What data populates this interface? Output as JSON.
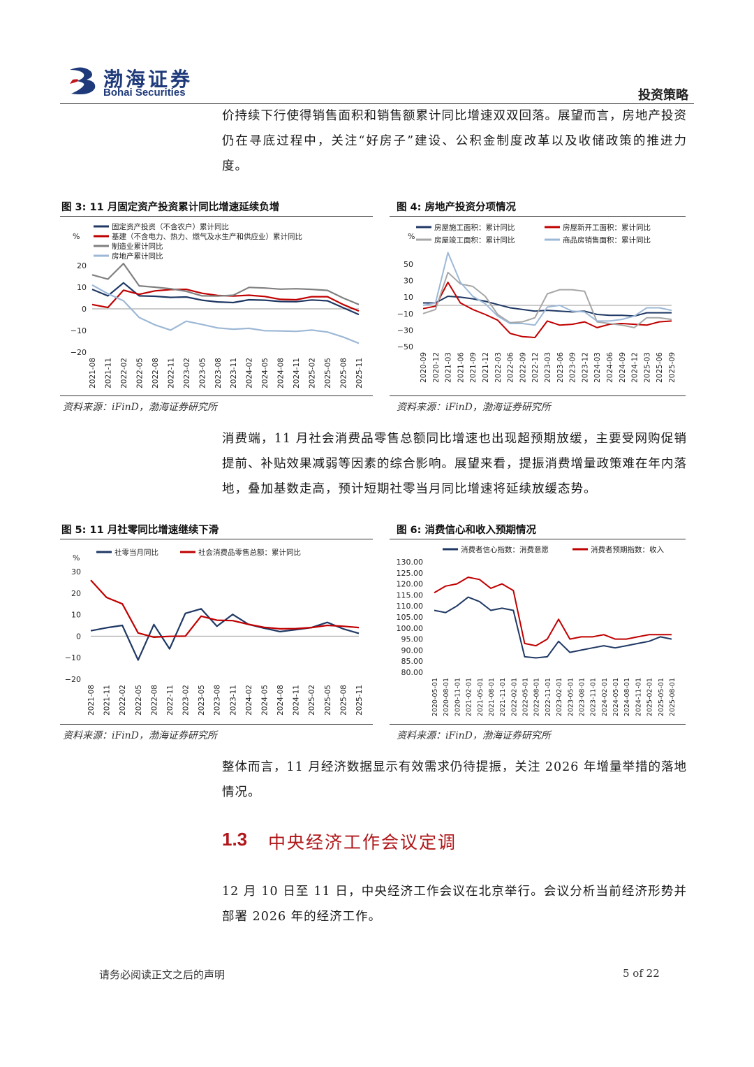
{
  "header": {
    "logo_cn": "渤海证券",
    "logo_en": "Bohai Securities",
    "section": "投资策略"
  },
  "paragraphs": {
    "p1": "价持续下行使得销售面积和销售额累计同比增速双双回落。展望而言，房地产投资仍在寻底过程中，关注“好房子”建设、公积金制度改革以及收储政策的推进力度。",
    "p2": "消费端，11 月社会消费品零售总额同比增速也出现超预期放缓，主要受网购促销提前、补贴效果减弱等因素的综合影响。展望来看，提振消费增量政策难在年内落地，叠加基数走高，预计短期社零当月同比增速将延续放缓态势。",
    "p3": "整体而言，11 月经济数据显示有效需求仍待提振，关注 2026 年增量举措的落地情况。",
    "p4": "12 月 10 日至 11 日，中央经济工作会议在北京举行。会议分析当前经济形势并部署 2026 年的经济工作。"
  },
  "section": {
    "number": "1.3",
    "title": "中央经济工作会议定调"
  },
  "figures": {
    "fig3": {
      "title": "图 3:   11 月固定资产投资累计同比增速延续负增",
      "source": "资料来源：iFinD，渤海证券研究所"
    },
    "fig4": {
      "title": "图 4:   房地产投资分项情况",
      "source": "资料来源：iFinD，渤海证券研究所"
    },
    "fig5": {
      "title": "图 5:   11 月社零同比增速继续下滑",
      "source": "资料来源：iFinD，渤海证券研究所"
    },
    "fig6": {
      "title": "图 6:   消费信心和收入预期情况",
      "source": "资料来源：iFinD，渤海证券研究所"
    }
  },
  "footer": {
    "disclaimer": "请务必阅读正文之后的声明",
    "page": "5 of 22"
  },
  "chart_data": [
    {
      "id": "fig3",
      "type": "line",
      "unit": "%",
      "ylim": [
        -20,
        20
      ],
      "yticks": [
        20,
        10,
        0,
        -10,
        -20
      ],
      "legend": "top-left",
      "x_labels": [
        "2021-08",
        "2021-11",
        "2022-02",
        "2022-05",
        "2022-08",
        "2022-11",
        "2023-02",
        "2023-05",
        "2023-08",
        "2023-11",
        "2024-02",
        "2024-05",
        "2024-08",
        "2024-11",
        "2025-02",
        "2025-05",
        "2025-08",
        "2025-11"
      ],
      "series": [
        {
          "name": "固定资产投资（不含农户）累计同比",
          "color": "#1f3864",
          "width": 2.2,
          "values": [
            9,
            6,
            12,
            6,
            5.8,
            5.3,
            5.5,
            4,
            3.2,
            2.9,
            4.2,
            4,
            3.4,
            3.3,
            4.1,
            3.7,
            0.5,
            -2.6
          ]
        },
        {
          "name": "基建（不含电力、热力、燃气及水生产和供应业）累计同比",
          "color": "#c00000",
          "width": 2.2,
          "values": [
            2,
            0.6,
            8.6,
            6.7,
            8.3,
            8.9,
            9,
            7.2,
            6.2,
            5.9,
            6.3,
            5.7,
            4.4,
            4.2,
            5.6,
            5.6,
            2,
            -1
          ]
        },
        {
          "name": "制造业累计同比",
          "color": "#808080",
          "width": 2.2,
          "values": [
            15.7,
            13.7,
            20.9,
            10.6,
            10,
            9.3,
            8.1,
            6,
            5.9,
            6.3,
            9.9,
            9.6,
            9.1,
            9.3,
            9,
            8.5,
            5,
            2
          ]
        },
        {
          "name": "房地产累计同比",
          "color": "#9db8d6",
          "width": 2.2,
          "values": [
            11,
            7,
            3.7,
            -4,
            -7.4,
            -9.8,
            -5.7,
            -7.2,
            -8.8,
            -9.4,
            -9,
            -10.1,
            -10.2,
            -10.4,
            -9.8,
            -10.7,
            -13,
            -15.9
          ]
        }
      ]
    },
    {
      "id": "fig4",
      "type": "line",
      "unit": "%",
      "ylim": [
        -50,
        50
      ],
      "yticks": [
        50,
        30,
        10,
        -10,
        -30,
        -50
      ],
      "legend": "top",
      "x_labels": [
        "2020-09",
        "2020-12",
        "2021-03",
        "2021-06",
        "2021-09",
        "2021-12",
        "2022-03",
        "2022-06",
        "2022-09",
        "2022-12",
        "2023-03",
        "2023-06",
        "2023-09",
        "2023-12",
        "2024-03",
        "2024-06",
        "2024-09",
        "2024-12",
        "2025-03",
        "2025-06",
        "2025-09"
      ],
      "series": [
        {
          "name": "房屋施工面积：累计同比",
          "color": "#1f3864",
          "width": 2,
          "values": [
            3,
            3,
            11,
            10,
            8,
            5,
            1,
            -3,
            -5,
            -7,
            -6,
            -7,
            -8,
            -7,
            -11,
            -12,
            -12,
            -13,
            -9,
            -9,
            -9
          ]
        },
        {
          "name": "房屋新开工面积：累计同比",
          "color": "#c00000",
          "width": 2,
          "values": [
            -4,
            -1,
            28,
            3,
            -5,
            -11,
            -18,
            -34,
            -38,
            -39,
            -19,
            -24,
            -23,
            -20,
            -27,
            -23,
            -22,
            -23,
            -24,
            -20,
            -19
          ]
        },
        {
          "name": "房屋竣工面积：累计同比",
          "color": "#a6a6a6",
          "width": 2,
          "values": [
            -10,
            -5,
            40,
            26,
            23,
            11,
            -11,
            -21,
            -20,
            -15,
            14,
            19,
            19,
            17,
            -20,
            -22,
            -24,
            -27,
            -15,
            -15,
            -17
          ]
        },
        {
          "name": "商品房销售面积：累计同比",
          "color": "#9db8d6",
          "width": 2,
          "values": [
            0,
            3,
            64,
            28,
            11,
            2,
            -13,
            -22,
            -22,
            -24,
            -2,
            0,
            -7,
            -8,
            -19,
            -19,
            -17,
            -13,
            -3,
            -3,
            -6
          ]
        }
      ]
    },
    {
      "id": "fig5",
      "type": "line",
      "unit": "%",
      "ylim": [
        -20,
        30
      ],
      "yticks": [
        30,
        20,
        10,
        0,
        -10,
        -20
      ],
      "legend": "top",
      "x_labels": [
        "2021-08",
        "2021-11",
        "2022-02",
        "2022-05",
        "2022-08",
        "2022-11",
        "2023-02",
        "2023-05",
        "2023-08",
        "2023-11",
        "2024-02",
        "2024-05",
        "2024-08",
        "2024-11",
        "2025-02",
        "2025-05",
        "2025-08",
        "2025-11"
      ],
      "series": [
        {
          "name": "社零当月同比",
          "color": "#1f3864",
          "width": 2.2,
          "values": [
            2.5,
            3.9,
            5,
            -11.1,
            5.4,
            -5.9,
            10.6,
            12.7,
            4.6,
            10.1,
            5.5,
            3.7,
            2.1,
            3,
            4,
            6.4,
            3.4,
            1.3
          ]
        },
        {
          "name": "社会消费品零售总额：累计同比",
          "color": "#c00000",
          "width": 2.2,
          "values": [
            26,
            18,
            15,
            1.5,
            -0.5,
            -0.1,
            0,
            9.3,
            7.4,
            7.2,
            5.5,
            4.1,
            3.4,
            3.5,
            4,
            5,
            4.6,
            4
          ]
        }
      ]
    },
    {
      "id": "fig6",
      "type": "line",
      "ylim": [
        80,
        130
      ],
      "yticks": [
        "130.00",
        "125.00",
        "120.00",
        "115.00",
        "110.00",
        "105.00",
        "100.00",
        "95.00",
        "90.00",
        "85.00",
        "80.00"
      ],
      "legend": "top",
      "x_labels": [
        "2020-05-01",
        "2020-08-01",
        "2020-11-01",
        "2021-02-01",
        "2021-05-01",
        "2021-08-01",
        "2021-11-01",
        "2022-02-01",
        "2022-05-01",
        "2022-08-01",
        "2022-11-01",
        "2023-02-01",
        "2023-05-01",
        "2023-08-01",
        "2023-11-01",
        "2024-02-01",
        "2024-05-01",
        "2024-08-01",
        "2024-11-01",
        "2025-02-01",
        "2025-05-01",
        "2025-08-01"
      ],
      "series": [
        {
          "name": "消费者信心指数：消费意愿",
          "color": "#1f3864",
          "width": 2,
          "values": [
            108,
            107,
            110,
            114,
            112,
            108,
            109,
            108,
            87,
            86.5,
            87,
            94,
            89,
            90,
            91,
            92,
            91,
            92,
            93,
            94,
            96,
            95
          ]
        },
        {
          "name": "消费者预期指数：收入",
          "color": "#c00000",
          "width": 2,
          "values": [
            116,
            119,
            120,
            123,
            122,
            118,
            120,
            117,
            93,
            92,
            95,
            104,
            95,
            96,
            96,
            97,
            95,
            95,
            96,
            97,
            97,
            97
          ]
        }
      ]
    }
  ]
}
